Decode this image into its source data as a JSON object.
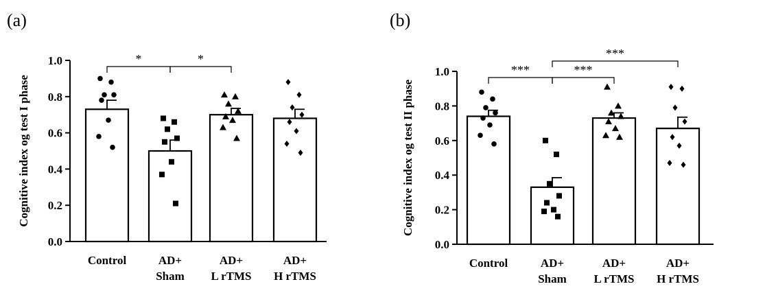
{
  "chart_data": [
    {
      "panel_label": "(a)",
      "type": "bar",
      "categories": [
        [
          "Control"
        ],
        [
          "AD+",
          "Sham"
        ],
        [
          "AD+",
          "L rTMS"
        ],
        [
          "AD+",
          "H rTMS"
        ]
      ],
      "values": [
        0.73,
        0.5,
        0.7,
        0.68
      ],
      "errors": [
        0.05,
        0.06,
        0.035,
        0.05
      ],
      "points": [
        [
          0.9,
          0.88,
          0.81,
          0.81,
          0.78,
          0.67,
          0.58,
          0.52
        ],
        [
          0.68,
          0.66,
          0.62,
          0.57,
          0.55,
          0.44,
          0.37,
          0.21
        ],
        [
          0.81,
          0.8,
          0.76,
          0.72,
          0.69,
          0.67,
          0.63,
          0.57
        ],
        [
          0.88,
          0.81,
          0.74,
          0.7,
          0.66,
          0.61,
          0.54,
          0.49
        ]
      ],
      "markers": [
        "circle",
        "square",
        "triangle",
        "diamond"
      ],
      "ylabel": "Cognitive index og test I phase",
      "xlabel": "",
      "ylim": [
        0,
        1.0
      ],
      "yticks": [
        0.0,
        0.2,
        0.4,
        0.6,
        0.8,
        1.0
      ],
      "comparisons": [
        {
          "from": 0,
          "to": 1,
          "label": "*",
          "level": 1
        },
        {
          "from": 1,
          "to": 2,
          "label": "*",
          "level": 1
        }
      ]
    },
    {
      "panel_label": "(b)",
      "type": "bar",
      "categories": [
        [
          "Control"
        ],
        [
          "AD+",
          "Sham"
        ],
        [
          "AD+",
          "L rTMS"
        ],
        [
          "AD+",
          "H rTMS"
        ]
      ],
      "values": [
        0.74,
        0.33,
        0.73,
        0.67
      ],
      "errors": [
        0.035,
        0.055,
        0.03,
        0.065
      ],
      "points": [
        [
          0.88,
          0.84,
          0.79,
          0.76,
          0.73,
          0.69,
          0.63,
          0.58
        ],
        [
          0.6,
          0.52,
          0.35,
          0.28,
          0.24,
          0.2,
          0.19,
          0.16
        ],
        [
          0.91,
          0.8,
          0.76,
          0.74,
          0.71,
          0.67,
          0.63,
          0.62
        ],
        [
          0.91,
          0.9,
          0.79,
          0.71,
          0.62,
          0.57,
          0.47,
          0.46
        ]
      ],
      "markers": [
        "circle",
        "square",
        "triangle",
        "diamond"
      ],
      "ylabel": "Cognitive index og test II phase",
      "xlabel": "",
      "ylim": [
        0,
        1.0
      ],
      "yticks": [
        0.0,
        0.2,
        0.4,
        0.6,
        0.8,
        1.0
      ],
      "comparisons": [
        {
          "from": 0,
          "to": 1,
          "label": "***",
          "level": 1
        },
        {
          "from": 1,
          "to": 2,
          "label": "***",
          "level": 1
        },
        {
          "from": 1,
          "to": 3,
          "label": "***",
          "level": 2
        }
      ]
    }
  ]
}
